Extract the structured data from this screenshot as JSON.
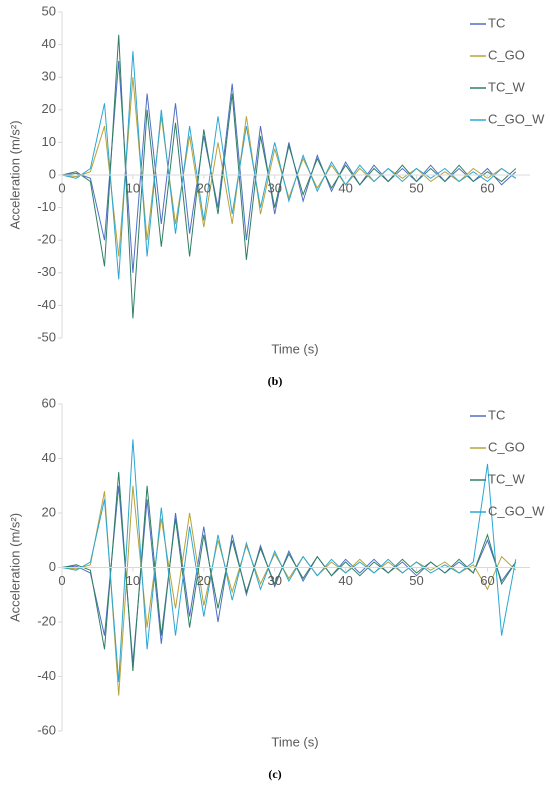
{
  "chart_data": [
    {
      "type": "line",
      "ylabel": "Acceleration (m/s²)",
      "xlabel": "Time (s)",
      "caption": "(b)",
      "x": [
        0,
        2,
        4,
        6,
        8,
        10,
        12,
        14,
        16,
        18,
        20,
        22,
        24,
        26,
        28,
        30,
        32,
        34,
        36,
        38,
        40,
        42,
        44,
        46,
        48,
        50,
        52,
        54,
        56,
        58,
        60,
        62,
        64
      ],
      "xlim": [
        0,
        66
      ],
      "ylim": [
        -50,
        50
      ],
      "xticks": [
        0,
        10,
        20,
        30,
        40,
        50,
        60
      ],
      "yticks": [
        -50,
        -40,
        -30,
        -20,
        -10,
        0,
        10,
        20,
        30,
        40,
        50
      ],
      "legend": "upper right",
      "series": [
        {
          "name": "TC",
          "color": "#4f6fc4",
          "values": [
            0,
            0.5,
            -1,
            -20,
            35,
            -30,
            25,
            -15,
            22,
            -18,
            12,
            -10,
            28,
            -20,
            15,
            -12,
            10,
            -8,
            6,
            -5,
            4,
            -3,
            3,
            -2,
            2,
            -2,
            3,
            -2,
            2,
            -2,
            2,
            -3,
            1
          ]
        },
        {
          "name": "C_GO",
          "color": "#b8a23a",
          "values": [
            0,
            -0.5,
            1,
            15,
            -25,
            30,
            -20,
            18,
            -15,
            12,
            -16,
            10,
            -15,
            18,
            -12,
            8,
            -7,
            5,
            -4,
            3,
            -3,
            2,
            -2,
            2,
            -1,
            2,
            -2,
            1,
            -2,
            2,
            -1,
            2,
            -1
          ]
        },
        {
          "name": "TC_W",
          "color": "#2f7f63",
          "values": [
            0,
            1,
            -2,
            -28,
            43,
            -44,
            20,
            -22,
            16,
            -25,
            14,
            -12,
            25,
            -26,
            12,
            -10,
            9,
            -6,
            5,
            -4,
            3,
            -3,
            2,
            -2,
            3,
            -2,
            2,
            -2,
            3,
            -2,
            1,
            -2,
            2
          ]
        },
        {
          "name": "C_GO_W",
          "color": "#2ba7d3",
          "values": [
            0,
            -1,
            2,
            22,
            -32,
            38,
            -25,
            20,
            -18,
            15,
            -14,
            18,
            -12,
            15,
            -10,
            10,
            -8,
            6,
            -5,
            4,
            -3,
            3,
            -2,
            2,
            -2,
            2,
            -1,
            2,
            -2,
            1,
            -2,
            2,
            -1
          ]
        }
      ]
    },
    {
      "type": "line",
      "ylabel": "Acceleration (m/s²)",
      "xlabel": "Time (s)",
      "caption": "(c)",
      "x": [
        0,
        2,
        4,
        6,
        8,
        10,
        12,
        14,
        16,
        18,
        20,
        22,
        24,
        26,
        28,
        30,
        32,
        34,
        36,
        38,
        40,
        42,
        44,
        46,
        48,
        50,
        52,
        54,
        56,
        58,
        60,
        62,
        64
      ],
      "xlim": [
        0,
        66
      ],
      "ylim": [
        -60,
        60
      ],
      "xticks": [
        0,
        10,
        20,
        30,
        40,
        50,
        60
      ],
      "yticks": [
        -60,
        -40,
        -20,
        0,
        20,
        40,
        60
      ],
      "legend": "upper right",
      "series": [
        {
          "name": "TC",
          "color": "#4f6fc4",
          "values": [
            0,
            0.5,
            -2,
            -25,
            30,
            -35,
            25,
            -28,
            20,
            -18,
            15,
            -20,
            12,
            -10,
            8,
            -7,
            6,
            -5,
            4,
            -3,
            3,
            -2,
            3,
            -2,
            2,
            -3,
            2,
            -2,
            2,
            -2,
            10,
            -5,
            2
          ]
        },
        {
          "name": "C_GO",
          "color": "#b8a23a",
          "values": [
            0,
            -0.5,
            1,
            28,
            -47,
            30,
            -22,
            18,
            -15,
            20,
            -14,
            10,
            -9,
            8,
            -6,
            5,
            -4,
            4,
            -3,
            2,
            -2,
            3,
            -2,
            2,
            -2,
            2,
            -1,
            2,
            -2,
            1,
            -8,
            4,
            -1
          ]
        },
        {
          "name": "TC_W",
          "color": "#2f7f63",
          "values": [
            0,
            1,
            -1,
            -30,
            35,
            -38,
            30,
            -25,
            18,
            -22,
            12,
            -15,
            10,
            -9,
            7,
            -6,
            5,
            -4,
            4,
            -3,
            2,
            -3,
            2,
            -2,
            3,
            -2,
            2,
            -2,
            3,
            -2,
            12,
            -6,
            2
          ]
        },
        {
          "name": "C_GO_W",
          "color": "#2ba7d3",
          "values": [
            0,
            -1,
            2,
            25,
            -42,
            47,
            -30,
            22,
            -25,
            15,
            -18,
            12,
            -12,
            9,
            -8,
            6,
            -5,
            4,
            -3,
            3,
            -2,
            2,
            -2,
            3,
            -2,
            2,
            -2,
            1,
            -2,
            2,
            38,
            -25,
            3
          ]
        }
      ]
    }
  ]
}
